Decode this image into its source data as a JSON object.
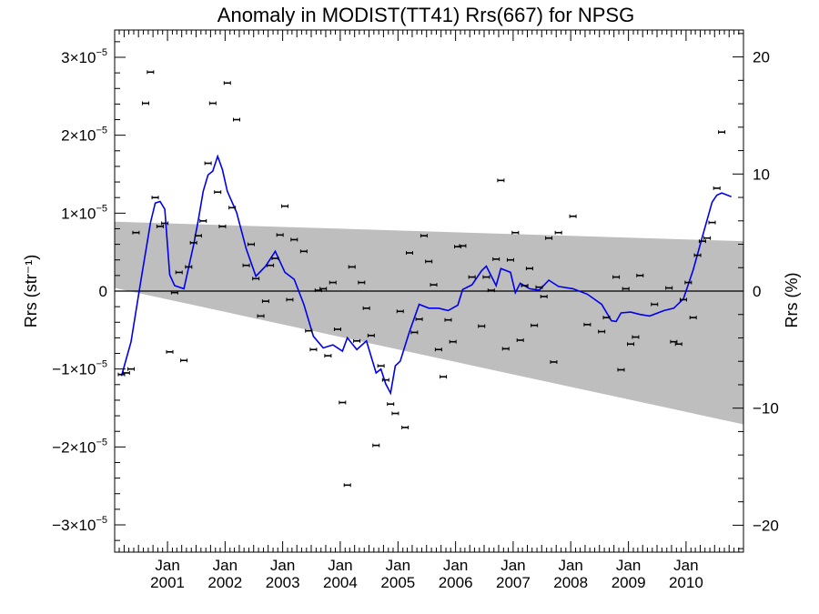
{
  "chart_data": {
    "type": "scatter",
    "title": "Anomaly in MODIST(TT41) Rrs(667) for NPSG",
    "ylabel_left": "Rrs (str⁻¹)",
    "ylabel_right": "Rrs (%)",
    "xlabel": "",
    "x_axis": {
      "type": "time",
      "range": [
        "2000-02-01",
        "2010-12-31"
      ],
      "tick_labels": [
        {
          "date": "2001-01",
          "month": "Jan",
          "year": "2001"
        },
        {
          "date": "2002-01",
          "month": "Jan",
          "year": "2002"
        },
        {
          "date": "2003-01",
          "month": "Jan",
          "year": "2003"
        },
        {
          "date": "2004-01",
          "month": "Jan",
          "year": "2004"
        },
        {
          "date": "2005-01",
          "month": "Jan",
          "year": "2005"
        },
        {
          "date": "2006-01",
          "month": "Jan",
          "year": "2006"
        },
        {
          "date": "2007-01",
          "month": "Jan",
          "year": "2007"
        },
        {
          "date": "2008-01",
          "month": "Jan",
          "year": "2008"
        },
        {
          "date": "2009-01",
          "month": "Jan",
          "year": "2009"
        },
        {
          "date": "2010-01",
          "month": "Jan",
          "year": "2010"
        }
      ]
    },
    "y_left": {
      "range": [
        -3.35e-05,
        3.35e-05
      ],
      "ticks": [
        {
          "value": 3e-05,
          "mantissa": "3",
          "exponent": "−5"
        },
        {
          "value": 2e-05,
          "mantissa": "2",
          "exponent": "−5"
        },
        {
          "value": 1e-05,
          "mantissa": "1",
          "exponent": "−5"
        },
        {
          "value": 0,
          "mantissa": "0",
          "exponent": ""
        },
        {
          "value": -1e-05,
          "mantissa": "−1",
          "exponent": "−5"
        },
        {
          "value": -2e-05,
          "mantissa": "−2",
          "exponent": "−5"
        },
        {
          "value": -3e-05,
          "mantissa": "−3",
          "exponent": "−5"
        }
      ]
    },
    "y_right": {
      "range": [
        -22.3,
        22.3
      ],
      "ticks": [
        {
          "value": 20,
          "label": "20"
        },
        {
          "value": 10,
          "label": "10"
        },
        {
          "value": 0,
          "label": "0"
        },
        {
          "value": -10,
          "label": "−10"
        },
        {
          "value": -20,
          "label": "−20"
        }
      ]
    },
    "uncertainty_band": {
      "color": "#bebebe",
      "upper": [
        {
          "x": "2000-02-01",
          "y": 8.9e-06
        },
        {
          "x": "2010-12-31",
          "y": 6.4e-06
        }
      ],
      "lower": [
        {
          "x": "2000-02-01",
          "y": 4e-07
        },
        {
          "x": "2010-12-31",
          "y": -1.71e-05
        }
      ]
    },
    "zero_line": 0,
    "series": [
      {
        "kind": "monthly_points_with_error_bars",
        "color": "#000000",
        "points": [
          {
            "x": "2000-03",
            "y": -1.07e-05
          },
          {
            "x": "2000-04",
            "y": -1.05e-05
          },
          {
            "x": "2000-05",
            "y": -1e-05
          },
          {
            "x": "2000-06",
            "y": 7.5e-06
          },
          {
            "x": "2000-08",
            "y": 2.41e-05
          },
          {
            "x": "2000-09",
            "y": 2.81e-05
          },
          {
            "x": "2000-10",
            "y": 1.2e-05
          },
          {
            "x": "2000-11",
            "y": 8.3e-06
          },
          {
            "x": "2000-12",
            "y": 8.7e-06
          },
          {
            "x": "2001-01",
            "y": -7.8e-06
          },
          {
            "x": "2001-02",
            "y": -2e-07
          },
          {
            "x": "2001-03",
            "y": 2.4e-06
          },
          {
            "x": "2001-04",
            "y": -8.9e-06
          },
          {
            "x": "2001-05",
            "y": 3.1e-06
          },
          {
            "x": "2001-06",
            "y": 6.2e-06
          },
          {
            "x": "2001-07",
            "y": 7.1e-06
          },
          {
            "x": "2001-08",
            "y": 9e-06
          },
          {
            "x": "2001-09",
            "y": 1.64e-05
          },
          {
            "x": "2001-10",
            "y": 2.41e-05
          },
          {
            "x": "2001-11",
            "y": 1.27e-05
          },
          {
            "x": "2001-12",
            "y": 8.3e-06
          },
          {
            "x": "2002-01",
            "y": 2.67e-05
          },
          {
            "x": "2002-02",
            "y": 1.07e-05
          },
          {
            "x": "2002-03",
            "y": 2.2e-05
          },
          {
            "x": "2002-05",
            "y": 3.3e-06
          },
          {
            "x": "2002-06",
            "y": 6e-06
          },
          {
            "x": "2002-07",
            "y": 1.6e-06
          },
          {
            "x": "2002-08",
            "y": -3.2e-06
          },
          {
            "x": "2002-09",
            "y": -1.3e-06
          },
          {
            "x": "2002-10",
            "y": 3.3e-06
          },
          {
            "x": "2002-11",
            "y": 4.2e-06
          },
          {
            "x": "2002-12",
            "y": 7.2e-06
          },
          {
            "x": "2003-01",
            "y": 1.09e-05
          },
          {
            "x": "2003-02",
            "y": -1.1e-06
          },
          {
            "x": "2003-03",
            "y": 6.6e-06
          },
          {
            "x": "2003-05",
            "y": 5.1e-06
          },
          {
            "x": "2003-06",
            "y": -5.1e-06
          },
          {
            "x": "2003-07",
            "y": -7.5e-06
          },
          {
            "x": "2003-08",
            "y": 1e-07
          },
          {
            "x": "2003-09",
            "y": 3e-07
          },
          {
            "x": "2003-10",
            "y": -8.3e-06
          },
          {
            "x": "2003-11",
            "y": 1.1e-06
          },
          {
            "x": "2003-12",
            "y": -4.9e-06
          },
          {
            "x": "2004-01",
            "y": -1.43e-05
          },
          {
            "x": "2004-02",
            "y": -2.49e-05
          },
          {
            "x": "2004-03",
            "y": 3.1e-06
          },
          {
            "x": "2004-04",
            "y": -6.4e-06
          },
          {
            "x": "2004-05",
            "y": 1.1e-06
          },
          {
            "x": "2004-06",
            "y": -2.2e-06
          },
          {
            "x": "2004-07",
            "y": -5.7e-06
          },
          {
            "x": "2004-08",
            "y": -1.98e-05
          },
          {
            "x": "2004-09",
            "y": -9.6e-06
          },
          {
            "x": "2004-10",
            "y": -1.14e-05
          },
          {
            "x": "2004-11",
            "y": -1.45e-05
          },
          {
            "x": "2004-12",
            "y": -1.57e-05
          },
          {
            "x": "2005-01",
            "y": -2.6e-06
          },
          {
            "x": "2005-02",
            "y": -1.75e-05
          },
          {
            "x": "2005-03",
            "y": 4.9e-06
          },
          {
            "x": "2005-04",
            "y": -5.3e-06
          },
          {
            "x": "2005-05",
            "y": -3.6e-06
          },
          {
            "x": "2005-06",
            "y": 7.1e-06
          },
          {
            "x": "2005-07",
            "y": 3.8e-06
          },
          {
            "x": "2005-08",
            "y": 8e-07
          },
          {
            "x": "2005-09",
            "y": -7.5e-06
          },
          {
            "x": "2005-10",
            "y": -1.1e-05
          },
          {
            "x": "2005-11",
            "y": -3.7e-06
          },
          {
            "x": "2005-12",
            "y": -6.5e-06
          },
          {
            "x": "2006-01",
            "y": 5.7e-06
          },
          {
            "x": "2006-02",
            "y": 5.8e-06
          },
          {
            "x": "2006-04",
            "y": 1.8e-06
          },
          {
            "x": "2006-06",
            "y": -4.5e-06
          },
          {
            "x": "2006-07",
            "y": 1.8e-06
          },
          {
            "x": "2006-08",
            "y": 1e-07
          },
          {
            "x": "2006-09",
            "y": 4.1e-06
          },
          {
            "x": "2006-10",
            "y": 1.42e-05
          },
          {
            "x": "2006-11",
            "y": -7.4e-06
          },
          {
            "x": "2006-12",
            "y": 4e-06
          },
          {
            "x": "2007-01",
            "y": 7.5e-06
          },
          {
            "x": "2007-02",
            "y": -6.3e-06
          },
          {
            "x": "2007-03",
            "y": 7e-07
          },
          {
            "x": "2007-04",
            "y": 2.9e-06
          },
          {
            "x": "2007-05",
            "y": -4.4e-06
          },
          {
            "x": "2007-06",
            "y": 5e-07
          },
          {
            "x": "2007-07",
            "y": -7e-07
          },
          {
            "x": "2007-08",
            "y": 6.8e-06
          },
          {
            "x": "2007-09",
            "y": -9.1e-06
          },
          {
            "x": "2007-10",
            "y": 7.5e-06
          },
          {
            "x": "2008-01",
            "y": 9.6e-06
          },
          {
            "x": "2008-04",
            "y": -4.3e-06
          },
          {
            "x": "2008-07",
            "y": -5.2e-06
          },
          {
            "x": "2008-08",
            "y": -3.4e-06
          },
          {
            "x": "2008-10",
            "y": 1.8e-06
          },
          {
            "x": "2008-11",
            "y": -1.01e-05
          },
          {
            "x": "2008-12",
            "y": 3e-07
          },
          {
            "x": "2009-01",
            "y": -6.8e-06
          },
          {
            "x": "2009-02",
            "y": -5.9e-06
          },
          {
            "x": "2009-03",
            "y": 2e-06
          },
          {
            "x": "2009-06",
            "y": -1.7e-06
          },
          {
            "x": "2009-09",
            "y": 4e-07
          },
          {
            "x": "2009-10",
            "y": -6.5e-06
          },
          {
            "x": "2009-11",
            "y": -6.8e-06
          },
          {
            "x": "2009-12",
            "y": -1.1e-06
          },
          {
            "x": "2010-01",
            "y": 1.1e-06
          },
          {
            "x": "2010-02",
            "y": -3.4e-06
          },
          {
            "x": "2010-03",
            "y": 4.6e-06
          },
          {
            "x": "2010-04",
            "y": 6.4e-06
          },
          {
            "x": "2010-05",
            "y": 6.8e-06
          },
          {
            "x": "2010-06",
            "y": 8.8e-06
          },
          {
            "x": "2010-07",
            "y": 1.32e-05
          },
          {
            "x": "2010-08",
            "y": 2.04e-05
          }
        ]
      },
      {
        "kind": "smoothed_line",
        "color": "#0000ee",
        "points": [
          {
            "x": "2000-03",
            "y": -1.09e-05
          },
          {
            "x": "2000-05",
            "y": -6.5e-06
          },
          {
            "x": "2000-07",
            "y": 1.2e-06
          },
          {
            "x": "2000-09",
            "y": 8.8e-06
          },
          {
            "x": "2000-10",
            "y": 1.13e-05
          },
          {
            "x": "2000-11",
            "y": 1.15e-05
          },
          {
            "x": "2000-12",
            "y": 1.05e-05
          },
          {
            "x": "2001-01",
            "y": 2.1e-06
          },
          {
            "x": "2001-02",
            "y": 7e-07
          },
          {
            "x": "2001-04",
            "y": 3e-07
          },
          {
            "x": "2001-06",
            "y": 5.9e-06
          },
          {
            "x": "2001-07",
            "y": 9.1e-06
          },
          {
            "x": "2001-08",
            "y": 1.28e-05
          },
          {
            "x": "2001-09",
            "y": 1.49e-05
          },
          {
            "x": "2001-10",
            "y": 1.54e-05
          },
          {
            "x": "2001-11",
            "y": 1.73e-05
          },
          {
            "x": "2001-12",
            "y": 1.56e-05
          },
          {
            "x": "2002-01",
            "y": 1.28e-05
          },
          {
            "x": "2002-03",
            "y": 1.01e-05
          },
          {
            "x": "2002-05",
            "y": 5.4e-06
          },
          {
            "x": "2002-07",
            "y": 1.9e-06
          },
          {
            "x": "2002-09",
            "y": 3.2e-06
          },
          {
            "x": "2002-11",
            "y": 5.1e-06
          },
          {
            "x": "2003-01",
            "y": 2.4e-06
          },
          {
            "x": "2003-03",
            "y": 1.5e-06
          },
          {
            "x": "2003-05",
            "y": -1.7e-06
          },
          {
            "x": "2003-07",
            "y": -5.8e-06
          },
          {
            "x": "2003-09",
            "y": -7.3e-06
          },
          {
            "x": "2003-11",
            "y": -6.9e-06
          },
          {
            "x": "2004-01",
            "y": -7.7e-06
          },
          {
            "x": "2004-02",
            "y": -6e-06
          },
          {
            "x": "2004-04",
            "y": -7.5e-06
          },
          {
            "x": "2004-06",
            "y": -6.4e-06
          },
          {
            "x": "2004-08",
            "y": -1.05e-05
          },
          {
            "x": "2004-09",
            "y": -1e-05
          },
          {
            "x": "2004-10",
            "y": -1.19e-05
          },
          {
            "x": "2004-11",
            "y": -1.31e-05
          },
          {
            "x": "2004-12",
            "y": -9.6e-06
          },
          {
            "x": "2005-01",
            "y": -9e-06
          },
          {
            "x": "2005-03",
            "y": -5.2e-06
          },
          {
            "x": "2005-05",
            "y": -1.7e-06
          },
          {
            "x": "2005-07",
            "y": -2.2e-06
          },
          {
            "x": "2005-09",
            "y": -2.2e-06
          },
          {
            "x": "2005-11",
            "y": -2.5e-06
          },
          {
            "x": "2006-01",
            "y": -1.8e-06
          },
          {
            "x": "2006-02",
            "y": 2e-07
          },
          {
            "x": "2006-04",
            "y": 8e-07
          },
          {
            "x": "2006-06",
            "y": 2.6e-06
          },
          {
            "x": "2006-07",
            "y": 3.2e-06
          },
          {
            "x": "2006-09",
            "y": 7e-07
          },
          {
            "x": "2006-10",
            "y": 2.9e-06
          },
          {
            "x": "2006-12",
            "y": 2.4e-06
          },
          {
            "x": "2007-01",
            "y": -2e-07
          },
          {
            "x": "2007-02",
            "y": 1e-06
          },
          {
            "x": "2007-04",
            "y": 3e-07
          },
          {
            "x": "2007-06",
            "y": 1e-07
          },
          {
            "x": "2007-08",
            "y": 1.4e-06
          },
          {
            "x": "2007-10",
            "y": 6e-07
          },
          {
            "x": "2008-01",
            "y": 3e-07
          },
          {
            "x": "2008-04",
            "y": -4e-07
          },
          {
            "x": "2008-07",
            "y": -1.7e-06
          },
          {
            "x": "2008-09",
            "y": -3.8e-06
          },
          {
            "x": "2008-10",
            "y": -3.9e-06
          },
          {
            "x": "2008-11",
            "y": -2.8e-06
          },
          {
            "x": "2009-01",
            "y": -2.7e-06
          },
          {
            "x": "2009-03",
            "y": -3e-06
          },
          {
            "x": "2009-05",
            "y": -3.2e-06
          },
          {
            "x": "2009-08",
            "y": -2.5e-06
          },
          {
            "x": "2009-10",
            "y": -2.2e-06
          },
          {
            "x": "2009-12",
            "y": -1e-06
          },
          {
            "x": "2010-02",
            "y": 2.7e-06
          },
          {
            "x": "2010-04",
            "y": 7e-06
          },
          {
            "x": "2010-06",
            "y": 1.14e-05
          },
          {
            "x": "2010-07",
            "y": 1.23e-05
          },
          {
            "x": "2010-08",
            "y": 1.26e-05
          },
          {
            "x": "2010-10",
            "y": 1.21e-05
          }
        ]
      }
    ],
    "grid": false,
    "legend": "none"
  }
}
